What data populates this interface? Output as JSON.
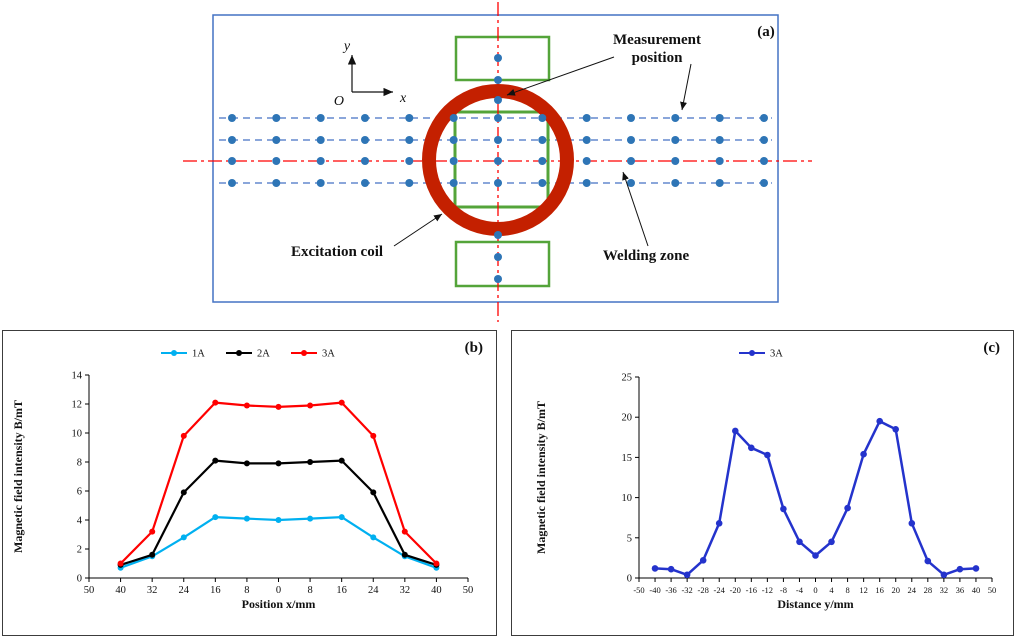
{
  "panel_a": {
    "label": "(a)",
    "measurement_position_line1": "Measurement",
    "measurement_position_line2": "position",
    "excitation_coil": "Excitation coil",
    "welding_zone": "Welding zone",
    "axis_y": "y",
    "axis_x": "x",
    "origin": "O",
    "colors": {
      "frame": "#4472C4",
      "row_line": "#4472C4",
      "center_line": "#FF0000",
      "coil": "#C42000",
      "magnet_box": "#54A43A",
      "measurement_dot": "#2E75B6"
    }
  },
  "chart_data": [
    {
      "id": "b",
      "panel_label": "(b)",
      "type": "line",
      "title": "",
      "xlabel": "Position x/mm",
      "ylabel": "Magnetic field intensity B/mT",
      "x_ticks": [
        "50",
        "40",
        "32",
        "24",
        "16",
        "8",
        "0",
        "8",
        "16",
        "24",
        "32",
        "40",
        "50"
      ],
      "data_tick_start": 1,
      "y_ticks": [
        0,
        2,
        4,
        6,
        8,
        10,
        12,
        14
      ],
      "ylim": [
        0,
        14
      ],
      "grid": false,
      "legend_position": "top",
      "series": [
        {
          "name": "1A",
          "color": "#00B0F0",
          "values": [
            0.7,
            1.5,
            2.8,
            4.2,
            4.1,
            4.0,
            4.1,
            4.2,
            2.8,
            1.5,
            0.7
          ]
        },
        {
          "name": "2A",
          "color": "#000000",
          "values": [
            0.9,
            1.6,
            5.9,
            8.1,
            7.9,
            7.9,
            8.0,
            8.1,
            5.9,
            1.6,
            0.9
          ]
        },
        {
          "name": "3A",
          "color": "#FF0000",
          "values": [
            1.0,
            3.2,
            9.8,
            12.1,
            11.9,
            11.8,
            11.9,
            12.1,
            9.8,
            3.2,
            1.0
          ]
        }
      ]
    },
    {
      "id": "c",
      "panel_label": "(c)",
      "type": "line",
      "title": "",
      "xlabel": "Distance y/mm",
      "ylabel": "Magnetic field intensity B/mT",
      "x_ticks": [
        "-50",
        "-40",
        "-36",
        "-32",
        "-28",
        "-24",
        "-20",
        "-16",
        "-12",
        "-8",
        "-4",
        "0",
        "4",
        "8",
        "12",
        "16",
        "20",
        "24",
        "28",
        "32",
        "36",
        "40",
        "50"
      ],
      "data_tick_start": 1,
      "y_ticks": [
        0,
        5,
        10,
        15,
        20,
        25
      ],
      "ylim": [
        0,
        25
      ],
      "grid": false,
      "legend_position": "top",
      "series": [
        {
          "name": "3A",
          "color": "#2433CC",
          "values": [
            1.2,
            1.1,
            0.4,
            2.2,
            6.8,
            18.3,
            16.2,
            15.3,
            8.6,
            4.5,
            2.8,
            4.5,
            8.7,
            15.4,
            19.5,
            18.5,
            6.8,
            2.1,
            0.4,
            1.1,
            1.2
          ]
        }
      ]
    }
  ]
}
